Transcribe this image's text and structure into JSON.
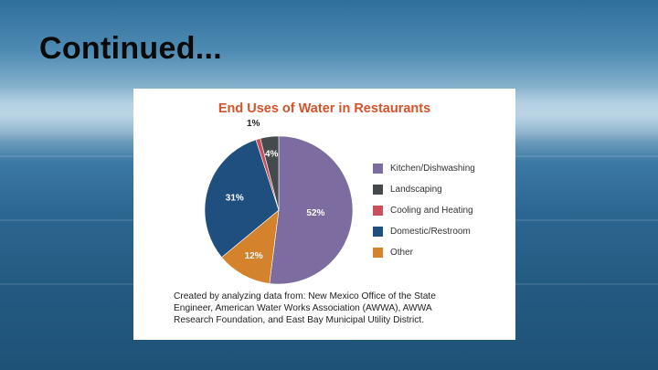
{
  "slide": {
    "title": "Continued..."
  },
  "chart_data": {
    "type": "pie",
    "title": "End Uses of Water in Restaurants",
    "slices": [
      {
        "name": "Kitchen/Dishwashing",
        "value": 52,
        "label": "52%",
        "color": "#7c6c9f"
      },
      {
        "name": "Other",
        "value": 12,
        "label": "12%",
        "color": "#d5822c"
      },
      {
        "name": "Domestic/Restroom",
        "value": 31,
        "label": "31%",
        "color": "#1e4f7e"
      },
      {
        "name": "Cooling and Heating",
        "value": 1,
        "label": "1%",
        "color": "#c8505c"
      },
      {
        "name": "Landscaping",
        "value": 4,
        "label": "4%",
        "color": "#454a4c"
      }
    ],
    "legend": [
      {
        "label": "Kitchen/Dishwashing",
        "color": "#7c6c9f"
      },
      {
        "label": "Landscaping",
        "color": "#454a4c"
      },
      {
        "label": "Cooling and Heating",
        "color": "#c8505c"
      },
      {
        "label": "Domestic/Restroom",
        "color": "#1e4f7e"
      },
      {
        "label": "Other",
        "color": "#d5822c"
      }
    ],
    "legend_position": "right"
  },
  "caption": {
    "lines": [
      "Created by analyzing data from: New Mexico Office of the State",
      "Engineer, American Water Works Association (AWWA), AWWA",
      "Research Foundation, and East Bay Municipal Utility District."
    ]
  }
}
